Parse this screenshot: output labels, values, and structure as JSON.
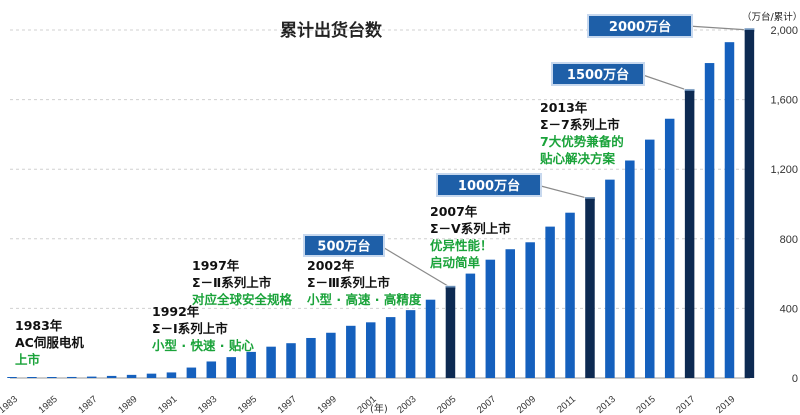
{
  "chart_data": {
    "type": "bar",
    "title": "累计出货台数",
    "y_unit_label": "（万台/累计）",
    "x_unit_label": "(年)",
    "ylim": [
      0,
      2000
    ],
    "y_ticks": [
      "0",
      "400",
      "800",
      "1,200",
      "1,600",
      "2,000"
    ],
    "grid": "horizontal dashed",
    "categories": [
      "1983",
      "1984",
      "1985",
      "1986",
      "1987",
      "1988",
      "1989",
      "1990",
      "1991",
      "1992",
      "1993",
      "1994",
      "1995",
      "1996",
      "1997",
      "1998",
      "1999",
      "2000",
      "2001",
      "2002",
      "2003",
      "2004",
      "2005",
      "2006",
      "2007",
      "2008",
      "2009",
      "2010",
      "2011",
      "2012",
      "2013",
      "2014",
      "2015",
      "2016",
      "2017",
      "2018",
      "2019",
      "2020"
    ],
    "x_tick_labels": [
      "1983",
      "1985",
      "1987",
      "1989",
      "1991",
      "1993",
      "1995",
      "1997",
      "1999",
      "2001",
      "2003",
      "2005",
      "2007",
      "2009",
      "2011",
      "2013",
      "2015",
      "2017",
      "2019"
    ],
    "values": [
      2,
      3,
      4,
      6,
      8,
      12,
      18,
      25,
      32,
      60,
      95,
      120,
      150,
      180,
      200,
      230,
      260,
      300,
      320,
      350,
      390,
      450,
      520,
      600,
      680,
      740,
      780,
      870,
      950,
      1030,
      1140,
      1250,
      1370,
      1490,
      1650,
      1810,
      1930,
      2000
    ],
    "highlight_years": [
      "2005",
      "2012",
      "2017",
      "2020"
    ],
    "bar_color": "#1560bd",
    "highlight_color": "#0d2a52",
    "badges": [
      {
        "text": "500万台",
        "year": "2005"
      },
      {
        "text": "1000万台",
        "year": "2012"
      },
      {
        "text": "1500万台",
        "year": "2017"
      },
      {
        "text": "2000万台",
        "year": "2020"
      }
    ],
    "annotations": [
      {
        "year": "1983",
        "lines": [
          "1983年",
          "AC伺服电机"
        ],
        "green": [
          "上市"
        ]
      },
      {
        "year": "1992",
        "lines": [
          "1992年",
          "Σ－Ⅰ系列上市"
        ],
        "green": [
          "小型 · 快速 · 贴心"
        ]
      },
      {
        "year": "1997",
        "lines": [
          "1997年",
          "Σ－Ⅱ系列上市"
        ],
        "green": [
          "对应全球安全规格"
        ]
      },
      {
        "year": "2002",
        "lines": [
          "2002年",
          "Σ－Ⅲ系列上市"
        ],
        "green": [
          "小型 · 高速 · 高精度"
        ]
      },
      {
        "year": "2007",
        "lines": [
          "2007年",
          "Σ－Ⅴ系列上市"
        ],
        "green": [
          "优异性能！",
          "启动简单"
        ]
      },
      {
        "year": "2013",
        "lines": [
          "2013年",
          "Σ－7系列上市"
        ],
        "green": [
          "7大优势兼备的",
          "贴心解决方案"
        ]
      }
    ]
  }
}
